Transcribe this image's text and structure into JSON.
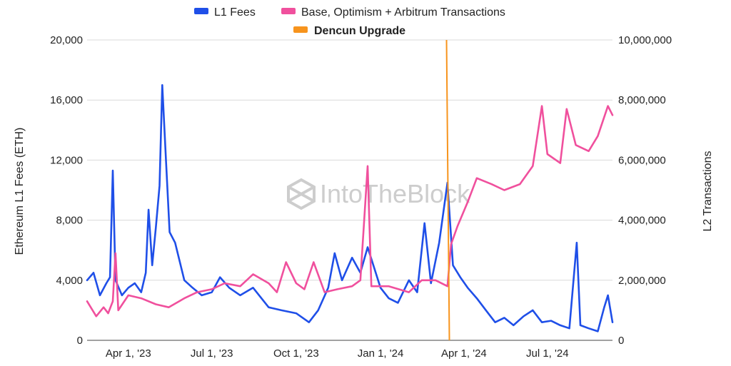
{
  "chart_data": {
    "type": "line",
    "title": "",
    "watermark": "IntoTheBlock",
    "x_labels": [
      "Apr 1,  '23",
      "Jul 1,  '23",
      "Oct 1,  '23",
      "Jan 1,  '24",
      "Apr 1,  '24",
      "Jul 1,  '24"
    ],
    "x_label_dates": [
      "2023-04-01",
      "2023-07-01",
      "2023-10-01",
      "2024-01-01",
      "2024-04-01",
      "2024-07-01"
    ],
    "x_range": [
      "2023-02-15",
      "2024-09-10"
    ],
    "left_axis": {
      "label": "Ethereum L1 Fees (ETH)",
      "ticks": [
        "0",
        "4,000",
        "8,000",
        "12,000",
        "16,000",
        "20,000"
      ],
      "min": 0,
      "max": 20000,
      "step": 4000
    },
    "right_axis": {
      "label": "L2 Transactions",
      "ticks": [
        "0",
        "2,000,000",
        "4,000,000",
        "6,000,000",
        "8,000,000",
        "10,000,000"
      ],
      "min": 0,
      "max": 10000000,
      "step": 2000000
    },
    "grid": true,
    "legend_position": "top",
    "series": [
      {
        "name": "L1 Fees",
        "axis": "left",
        "color": "#1f4fe8",
        "points": [
          [
            "2023-02-15",
            4000
          ],
          [
            "2023-02-22",
            4500
          ],
          [
            "2023-03-01",
            3000
          ],
          [
            "2023-03-08",
            3800
          ],
          [
            "2023-03-12",
            4200
          ],
          [
            "2023-03-15",
            11300
          ],
          [
            "2023-03-18",
            4000
          ],
          [
            "2023-03-25",
            3000
          ],
          [
            "2023-04-01",
            3500
          ],
          [
            "2023-04-08",
            3800
          ],
          [
            "2023-04-15",
            3200
          ],
          [
            "2023-04-20",
            4500
          ],
          [
            "2023-04-23",
            8700
          ],
          [
            "2023-04-27",
            5000
          ],
          [
            "2023-05-01",
            7500
          ],
          [
            "2023-05-05",
            10300
          ],
          [
            "2023-05-08",
            17000
          ],
          [
            "2023-05-12",
            12000
          ],
          [
            "2023-05-16",
            7200
          ],
          [
            "2023-05-22",
            6500
          ],
          [
            "2023-06-01",
            4000
          ],
          [
            "2023-06-10",
            3500
          ],
          [
            "2023-06-20",
            3000
          ],
          [
            "2023-07-01",
            3200
          ],
          [
            "2023-07-10",
            4200
          ],
          [
            "2023-07-20",
            3500
          ],
          [
            "2023-08-01",
            3000
          ],
          [
            "2023-08-15",
            3500
          ],
          [
            "2023-09-01",
            2200
          ],
          [
            "2023-09-15",
            2000
          ],
          [
            "2023-10-01",
            1800
          ],
          [
            "2023-10-15",
            1200
          ],
          [
            "2023-10-25",
            2000
          ],
          [
            "2023-11-05",
            3500
          ],
          [
            "2023-11-12",
            5800
          ],
          [
            "2023-11-20",
            4000
          ],
          [
            "2023-12-01",
            5500
          ],
          [
            "2023-12-10",
            4500
          ],
          [
            "2023-12-18",
            6200
          ],
          [
            "2024-01-01",
            3500
          ],
          [
            "2024-01-10",
            2800
          ],
          [
            "2024-01-20",
            2500
          ],
          [
            "2024-02-01",
            4000
          ],
          [
            "2024-02-10",
            3200
          ],
          [
            "2024-02-18",
            7800
          ],
          [
            "2024-02-25",
            3800
          ],
          [
            "2024-03-05",
            6500
          ],
          [
            "2024-03-14",
            10500
          ],
          [
            "2024-03-20",
            5000
          ],
          [
            "2024-03-28",
            4200
          ],
          [
            "2024-04-05",
            3500
          ],
          [
            "2024-04-15",
            2800
          ],
          [
            "2024-04-25",
            2000
          ],
          [
            "2024-05-05",
            1200
          ],
          [
            "2024-05-15",
            1500
          ],
          [
            "2024-05-25",
            1000
          ],
          [
            "2024-06-05",
            1600
          ],
          [
            "2024-06-15",
            2000
          ],
          [
            "2024-06-25",
            1200
          ],
          [
            "2024-07-05",
            1300
          ],
          [
            "2024-07-15",
            1000
          ],
          [
            "2024-07-25",
            800
          ],
          [
            "2024-08-02",
            6500
          ],
          [
            "2024-08-06",
            1000
          ],
          [
            "2024-08-15",
            800
          ],
          [
            "2024-08-25",
            600
          ],
          [
            "2024-09-01",
            2200
          ],
          [
            "2024-09-05",
            3000
          ],
          [
            "2024-09-10",
            1200
          ]
        ]
      },
      {
        "name": "Base, Optimism + Arbitrum Transactions",
        "axis": "right",
        "color": "#f0509d",
        "points": [
          [
            "2023-02-15",
            1300000
          ],
          [
            "2023-02-25",
            800000
          ],
          [
            "2023-03-05",
            1100000
          ],
          [
            "2023-03-10",
            900000
          ],
          [
            "2023-03-15",
            1300000
          ],
          [
            "2023-03-18",
            2900000
          ],
          [
            "2023-03-21",
            1000000
          ],
          [
            "2023-04-01",
            1500000
          ],
          [
            "2023-04-15",
            1400000
          ],
          [
            "2023-05-01",
            1200000
          ],
          [
            "2023-05-15",
            1100000
          ],
          [
            "2023-06-01",
            1400000
          ],
          [
            "2023-06-15",
            1600000
          ],
          [
            "2023-07-01",
            1700000
          ],
          [
            "2023-07-15",
            1900000
          ],
          [
            "2023-08-01",
            1800000
          ],
          [
            "2023-08-15",
            2200000
          ],
          [
            "2023-09-01",
            1900000
          ],
          [
            "2023-09-10",
            1600000
          ],
          [
            "2023-09-20",
            2600000
          ],
          [
            "2023-10-01",
            1900000
          ],
          [
            "2023-10-10",
            1700000
          ],
          [
            "2023-10-20",
            2600000
          ],
          [
            "2023-11-01",
            1600000
          ],
          [
            "2023-11-15",
            1700000
          ],
          [
            "2023-12-01",
            1800000
          ],
          [
            "2023-12-10",
            2000000
          ],
          [
            "2023-12-18",
            5800000
          ],
          [
            "2023-12-22",
            1800000
          ],
          [
            "2024-01-10",
            1800000
          ],
          [
            "2024-02-01",
            1600000
          ],
          [
            "2024-02-15",
            2000000
          ],
          [
            "2024-03-01",
            2000000
          ],
          [
            "2024-03-14",
            1800000
          ],
          [
            "2024-03-18",
            3200000
          ],
          [
            "2024-03-25",
            3800000
          ],
          [
            "2024-04-05",
            4600000
          ],
          [
            "2024-04-15",
            5400000
          ],
          [
            "2024-05-01",
            5200000
          ],
          [
            "2024-05-15",
            5000000
          ],
          [
            "2024-06-01",
            5200000
          ],
          [
            "2024-06-15",
            5800000
          ],
          [
            "2024-06-25",
            7800000
          ],
          [
            "2024-07-01",
            6200000
          ],
          [
            "2024-07-15",
            5900000
          ],
          [
            "2024-07-22",
            7700000
          ],
          [
            "2024-08-01",
            6500000
          ],
          [
            "2024-08-15",
            6300000
          ],
          [
            "2024-08-25",
            6800000
          ],
          [
            "2024-09-05",
            7800000
          ],
          [
            "2024-09-10",
            7500000
          ]
        ]
      }
    ],
    "markers": [
      {
        "name": "Dencun Upgrade",
        "date": "2024-03-13",
        "color": "#f7941d"
      }
    ]
  }
}
